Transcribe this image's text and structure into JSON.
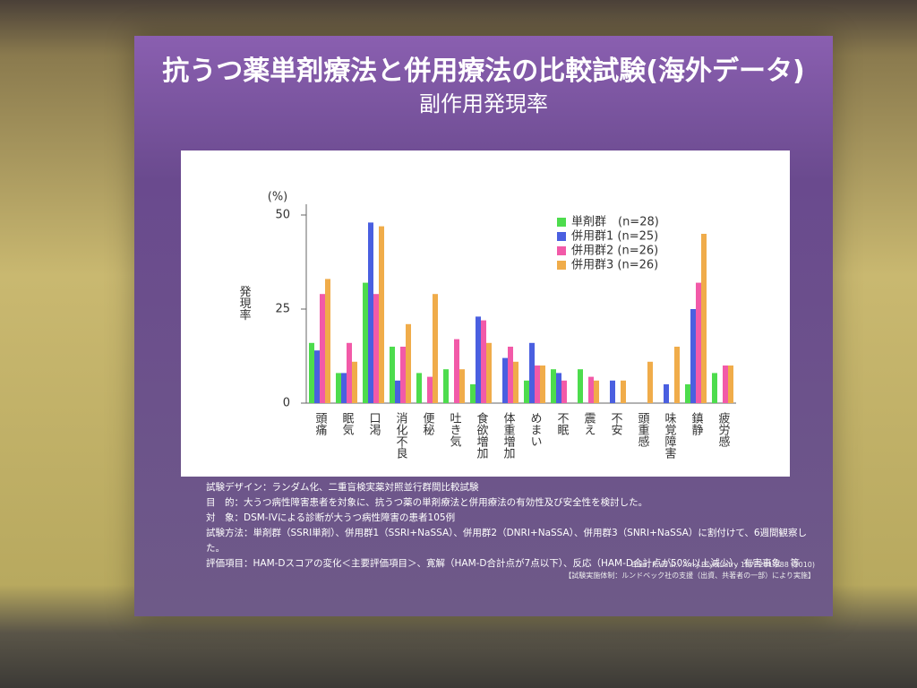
{
  "chart_data": {
    "type": "bar",
    "title": "抗うつ薬単剤療法と併用療法の比較試験(海外データ)",
    "subtitle": "副作用発現率",
    "ylabel": "発現率",
    "yunit": "(%)",
    "categories": [
      "頭痛",
      "眠気",
      "口渇",
      "消化不良",
      "便秘",
      "吐き気",
      "食欲増加",
      "体重増加",
      "めまい",
      "不眠",
      "震え",
      "不安",
      "頭重感",
      "味覚障害",
      "鎮静",
      "疲労感"
    ],
    "series": [
      {
        "name": "単剤群　(n=28)",
        "color": "#4ddc4d",
        "values": [
          16,
          8,
          32,
          15,
          8,
          9,
          5,
          0,
          6,
          9,
          9,
          0,
          0,
          0,
          5,
          8
        ]
      },
      {
        "name": "併用群1 (n=25)",
        "color": "#4a5fe0",
        "values": [
          14,
          8,
          48,
          6,
          0,
          0,
          23,
          12,
          16,
          8,
          0,
          6,
          0,
          5,
          25,
          0
        ]
      },
      {
        "name": "併用群2 (n=26)",
        "color": "#f25aa8",
        "values": [
          29,
          16,
          29,
          15,
          7,
          17,
          22,
          15,
          10,
          6,
          7,
          0,
          0,
          0,
          32,
          10
        ]
      },
      {
        "name": "併用群3 (n=26)",
        "color": "#f0ac4a",
        "values": [
          33,
          11,
          47,
          21,
          29,
          9,
          16,
          11,
          10,
          0,
          6,
          6,
          11,
          15,
          45,
          10
        ]
      }
    ],
    "ylim": [
      0,
      50
    ],
    "yticks": [
      0,
      25,
      50
    ],
    "legend": "upper-right"
  },
  "slide": {
    "notes": [
      "試験デザイン：ランダム化、二重盲検実薬対照並行群間比較試験",
      "目　的：大うつ病性障害患者を対象に、抗うつ薬の単剤療法と併用療法の有効性及び安全性を検討した。",
      "対　象：DSM-IVによる診断が大うつ病性障害の患者105例",
      "試験方法：単剤群（SSRI単剤）、併用群1（SSRI+NaSSA）、併用群2（DNRI+NaSSA）、併用群3（SNRI+NaSSA）に割付けて、6週間観察した。",
      "評価項目：HAM-Dスコアの変化＜主要評価項目＞、寛解（HAM-D合計点が7点以下）、反応（HAM-D合計点が50%以上減少）、有害事象　等"
    ],
    "citation": [
      "Blier, P. et al.: Am J Psychiatry 167: 281-288 (2010)",
      "【試験実施体制：ルンドベック社の支援（出資、共著者の一部）により実施】"
    ]
  }
}
